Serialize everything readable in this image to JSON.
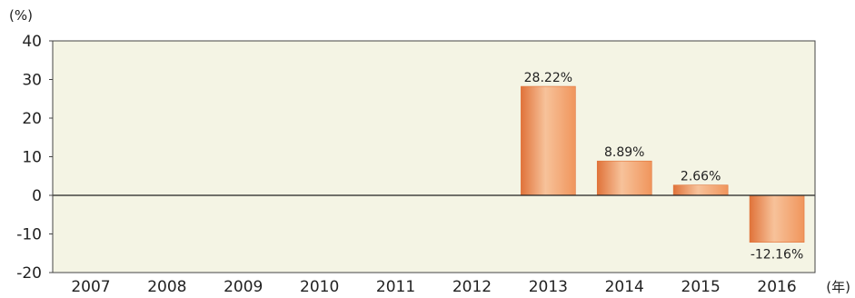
{
  "chart_data": {
    "type": "bar",
    "ylabel": "(%)",
    "xlabel": "(年)",
    "ylim": [
      -20,
      40
    ],
    "yticks": [
      40,
      30,
      20,
      10,
      0,
      -10,
      -20
    ],
    "ytick_labels": [
      "40",
      "30",
      "20",
      "10",
      "0",
      "-10",
      "-20"
    ],
    "categories": [
      "2007",
      "2008",
      "2009",
      "2010",
      "2011",
      "2012",
      "2013",
      "2014",
      "2015",
      "2016"
    ],
    "values": [
      null,
      null,
      null,
      null,
      null,
      null,
      28.22,
      8.89,
      2.66,
      -12.16
    ],
    "data_labels": [
      "",
      "",
      "",
      "",
      "",
      "",
      "28.22%",
      "8.89%",
      "2.66%",
      "-12.16%"
    ],
    "grid": false,
    "colors": {
      "plot_background": "#f4f4e4",
      "bar_fill": "#f0955c",
      "bar_fill_light": "#f7c29a",
      "bar_fill_dark": "#e0733a",
      "frame": "#444444",
      "zero_line": "#222222",
      "text": "#222222"
    }
  }
}
